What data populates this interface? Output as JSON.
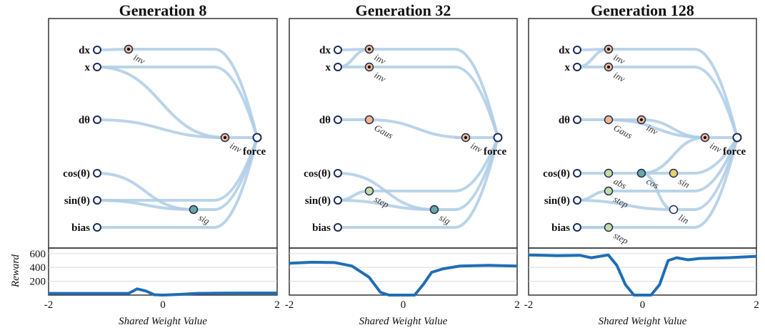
{
  "panels": [
    {
      "title": "Generation 8",
      "inputs": [
        "dx",
        "x",
        "dθ",
        "cos(θ)",
        "sin(θ)",
        "bias"
      ],
      "output": "force",
      "hidden": [
        {
          "id": "h1",
          "label": "inv",
          "color": "#f3b98a"
        },
        {
          "id": "h2",
          "label": "inv",
          "color": "#f3b98a"
        },
        {
          "id": "h3",
          "label": "sig",
          "color": "#6aa7a3"
        }
      ]
    },
    {
      "title": "Generation 32",
      "inputs": [
        "dx",
        "x",
        "dθ",
        "cos(θ)",
        "sin(θ)",
        "bias"
      ],
      "output": "force",
      "hidden": [
        {
          "id": "h1",
          "label": "inv",
          "color": "#f3b98a"
        },
        {
          "id": "h2",
          "label": "inv",
          "color": "#f3b98a"
        },
        {
          "id": "h3",
          "label": "Gaus",
          "color": "#f3b98a"
        },
        {
          "id": "h4",
          "label": "inv",
          "color": "#f3b98a"
        },
        {
          "id": "h5",
          "label": "step",
          "color": "#c9dca0"
        },
        {
          "id": "h6",
          "label": "sig",
          "color": "#6aa7a3"
        }
      ]
    },
    {
      "title": "Generation 128",
      "inputs": [
        "dx",
        "x",
        "dθ",
        "cos(θ)",
        "sin(θ)",
        "bias"
      ],
      "output": "force",
      "hidden": [
        {
          "id": "h1",
          "label": "inv",
          "color": "#f3b98a"
        },
        {
          "id": "h2",
          "label": "inv",
          "color": "#f3b98a"
        },
        {
          "id": "h3",
          "label": "Gaus",
          "color": "#f3b98a"
        },
        {
          "id": "h4",
          "label": "inv",
          "color": "#f3b98a"
        },
        {
          "id": "h5",
          "label": "inv",
          "color": "#f3b98a"
        },
        {
          "id": "h6",
          "label": "abs",
          "color": "#c9dca0"
        },
        {
          "id": "h7",
          "label": "cos",
          "color": "#6aa7a3"
        },
        {
          "id": "h8",
          "label": "sin",
          "color": "#e6d36a"
        },
        {
          "id": "h9",
          "label": "step",
          "color": "#c9dca0"
        },
        {
          "id": "h10",
          "label": "lin",
          "color": "#ffffff"
        },
        {
          "id": "h11",
          "label": "step",
          "color": "#c9dca0"
        }
      ]
    }
  ],
  "chart_data": [
    {
      "type": "line",
      "x": [
        -2,
        -1.5,
        -1,
        -0.6,
        -0.45,
        -0.3,
        -0.15,
        0,
        0.3,
        0.6,
        1,
        1.5,
        2
      ],
      "values": [
        25,
        25,
        25,
        25,
        90,
        60,
        5,
        0,
        10,
        25,
        28,
        30,
        30
      ],
      "xlim": [
        -2,
        2
      ],
      "ylim": [
        0,
        680
      ],
      "xticks": [
        "-2",
        "0",
        "2"
      ],
      "yticks": [
        "200",
        "400",
        "600"
      ],
      "ylabel": "Reward",
      "xlabel": "Shared Weight Value",
      "color": "#1f6eb6"
    },
    {
      "type": "line",
      "x": [
        -2,
        -1.6,
        -1.2,
        -0.9,
        -0.6,
        -0.4,
        -0.25,
        0,
        0.2,
        0.35,
        0.5,
        0.7,
        1,
        1.5,
        2
      ],
      "values": [
        460,
        475,
        470,
        420,
        260,
        40,
        0,
        0,
        0,
        150,
        330,
        380,
        420,
        430,
        420
      ],
      "xlim": [
        -2,
        2
      ],
      "ylim": [
        0,
        680
      ],
      "xticks": [
        "-2",
        "0",
        "2"
      ],
      "yticks": [
        "200",
        "400",
        "600"
      ],
      "ylabel": "Reward",
      "xlabel": "Shared Weight Value",
      "color": "#1f6eb6"
    },
    {
      "type": "line",
      "x": [
        -2,
        -1.5,
        -1.1,
        -0.9,
        -0.6,
        -0.45,
        -0.3,
        -0.15,
        0,
        0.15,
        0.3,
        0.45,
        0.6,
        0.8,
        1,
        1.5,
        2
      ],
      "values": [
        580,
        570,
        575,
        540,
        580,
        430,
        150,
        0,
        0,
        0,
        150,
        500,
        540,
        510,
        530,
        540,
        560
      ],
      "xlim": [
        -2,
        2
      ],
      "ylim": [
        0,
        680
      ],
      "xticks": [
        "-2",
        "0",
        "2"
      ],
      "yticks": [
        "200",
        "400",
        "600"
      ],
      "ylabel": "Reward",
      "xlabel": "Shared Weight Value",
      "color": "#1f6eb6"
    }
  ]
}
